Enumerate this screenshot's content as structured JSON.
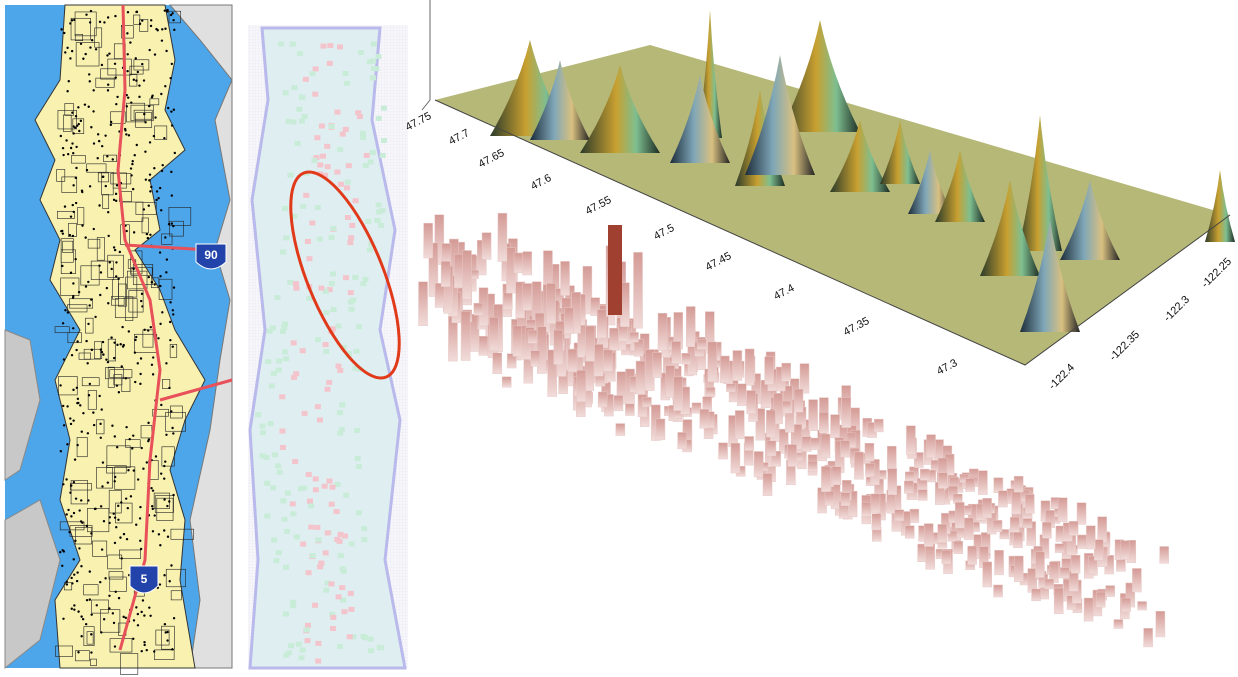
{
  "map": {
    "shields": [
      "90",
      "5"
    ]
  },
  "surface": {
    "lat_labels": [
      "47.75",
      "47.7",
      "47.65",
      "47.6",
      "47.55",
      "47.5",
      "47.45",
      "47.4",
      "47.35",
      "47.3"
    ],
    "lon_labels": [
      "-122.4",
      "-122.35",
      "-122.3",
      "-122.25"
    ]
  }
}
